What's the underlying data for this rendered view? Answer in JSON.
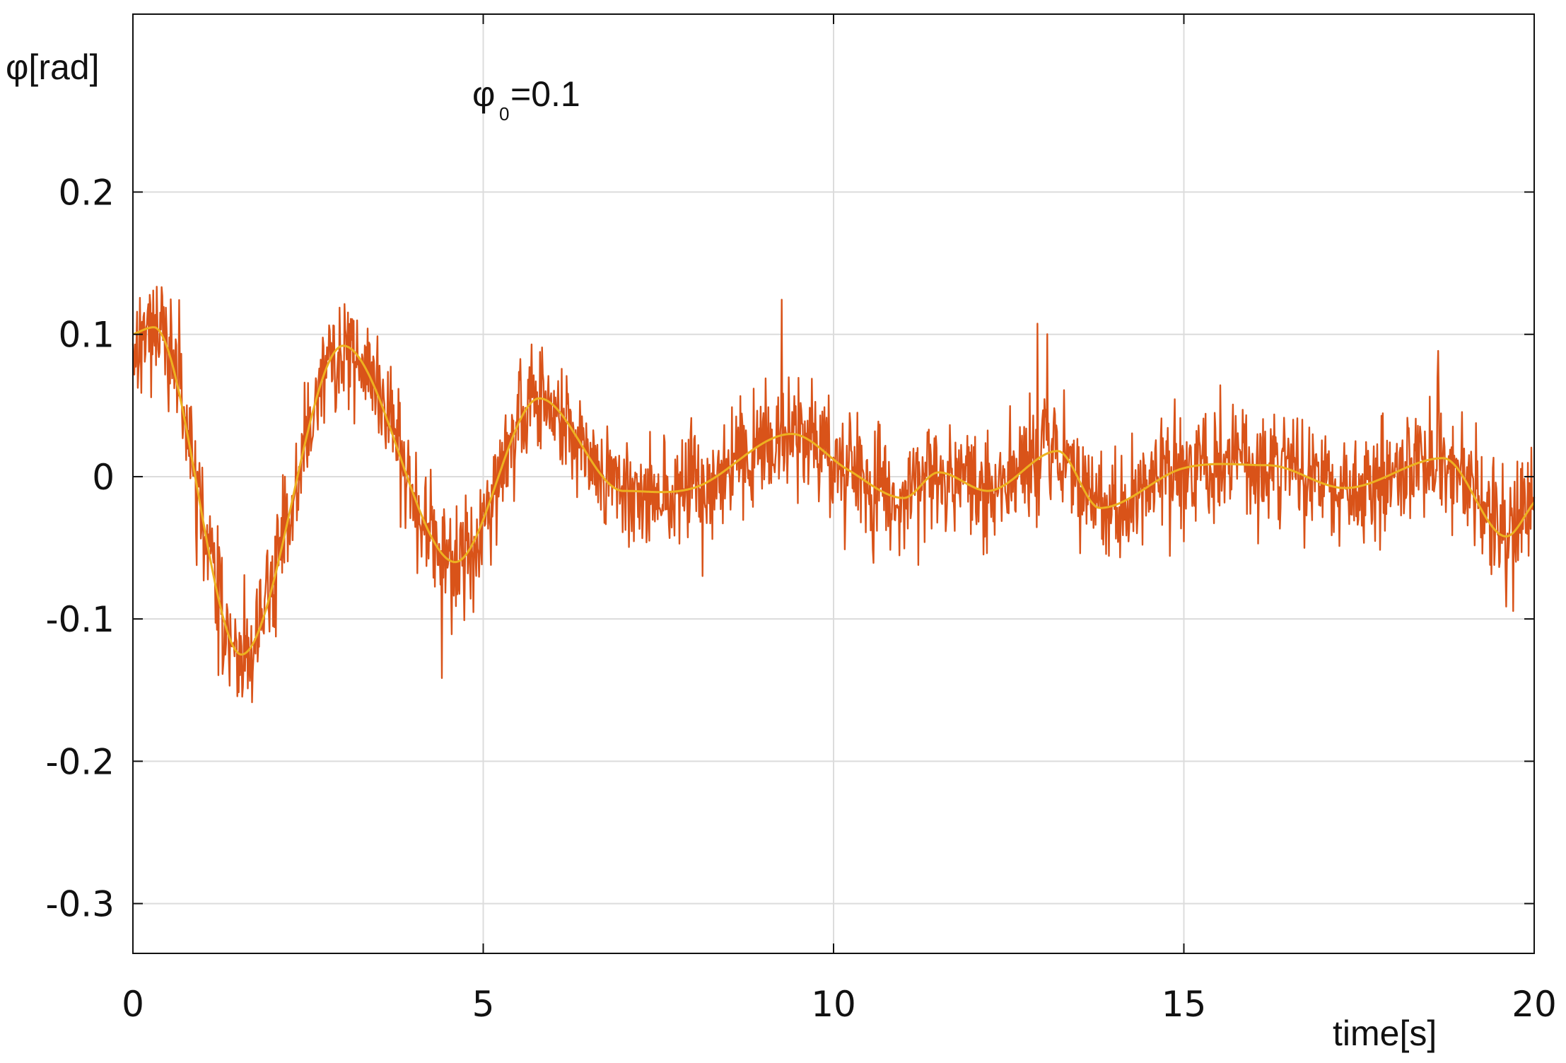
{
  "chart_data": {
    "type": "line",
    "xlabel": "time[s]",
    "ylabel": "φ[rad]",
    "annotation": {
      "base": "φ",
      "subscript": "0",
      "text": "=0.1"
    },
    "xlim": [
      0,
      20
    ],
    "ylim": [
      -0.335,
      0.325
    ],
    "xticks": [
      0,
      5,
      10,
      15,
      20
    ],
    "xtick_labels": [
      "0",
      "5",
      "10",
      "15",
      "20"
    ],
    "yticks": [
      0.2,
      0.1,
      0,
      -0.1,
      -0.2,
      -0.3
    ],
    "ytick_labels": [
      "0.2",
      "0.1",
      "0",
      "-0.1",
      "-0.2",
      "-0.3"
    ],
    "grid": true,
    "series": [
      {
        "style": "noisy",
        "color": "#d95319",
        "sample_dt": 0.01,
        "noise_amplitude": 0.04,
        "seed": 17,
        "x": [
          0,
          0.3,
          1.55,
          3.0,
          4.6,
          5.8,
          7.0,
          8.0,
          9.4,
          10.2,
          11.0,
          11.5,
          12.2,
          13.2,
          13.8,
          15.0,
          16.2,
          17.3,
          18.7,
          19.6,
          20.0
        ],
        "y": [
          0.1,
          0.105,
          -0.125,
          0.092,
          -0.06,
          0.055,
          -0.01,
          -0.008,
          0.03,
          0.005,
          -0.015,
          0.003,
          -0.01,
          0.018,
          -0.022,
          0.006,
          0.008,
          -0.008,
          0.013,
          -0.042,
          -0.018
        ]
      },
      {
        "style": "smooth",
        "color": "#edb120",
        "x": [
          0,
          0.3,
          1.55,
          3.0,
          4.6,
          5.8,
          7.0,
          8.0,
          9.4,
          10.2,
          11.0,
          11.5,
          12.2,
          13.2,
          13.8,
          15.0,
          16.2,
          17.3,
          18.7,
          19.6,
          20.0
        ],
        "y": [
          0.1,
          0.105,
          -0.125,
          0.092,
          -0.06,
          0.055,
          -0.01,
          -0.008,
          0.03,
          0.005,
          -0.015,
          0.003,
          -0.01,
          0.018,
          -0.022,
          0.006,
          0.008,
          -0.008,
          0.013,
          -0.042,
          -0.018
        ]
      }
    ]
  }
}
